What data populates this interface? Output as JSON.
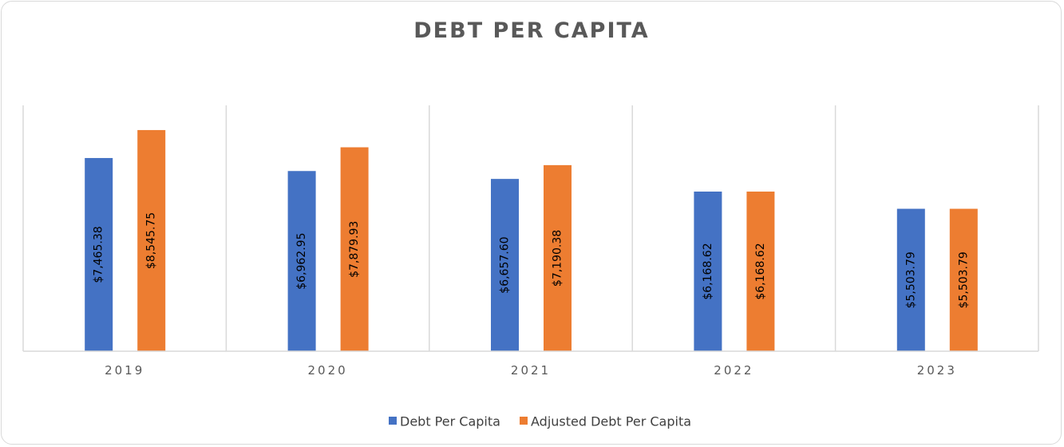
{
  "chart_data": {
    "type": "bar",
    "title": "DEBT PER CAPITA",
    "categories": [
      "2019",
      "2020",
      "2021",
      "2022",
      "2023"
    ],
    "series": [
      {
        "name": "Debt Per Capita",
        "color": "#4472C4",
        "values": [
          7465.38,
          6962.95,
          6657.6,
          6168.62,
          5503.79
        ],
        "labels": [
          "$7,465.38",
          "$6,962.95",
          "$6,657.60",
          "$6,168.62",
          "$5,503.79"
        ]
      },
      {
        "name": "Adjusted Debt Per Capita",
        "color": "#ED7D31",
        "values": [
          8545.75,
          7879.93,
          7190.38,
          6168.62,
          5503.79
        ],
        "labels": [
          "$8,545.75",
          "$7,879.93",
          "$7,190.38",
          "$6,168.62",
          "$5,503.79"
        ]
      }
    ],
    "ylim": [
      0,
      9500
    ],
    "grid": "vertical category separators",
    "legend_position": "bottom"
  }
}
